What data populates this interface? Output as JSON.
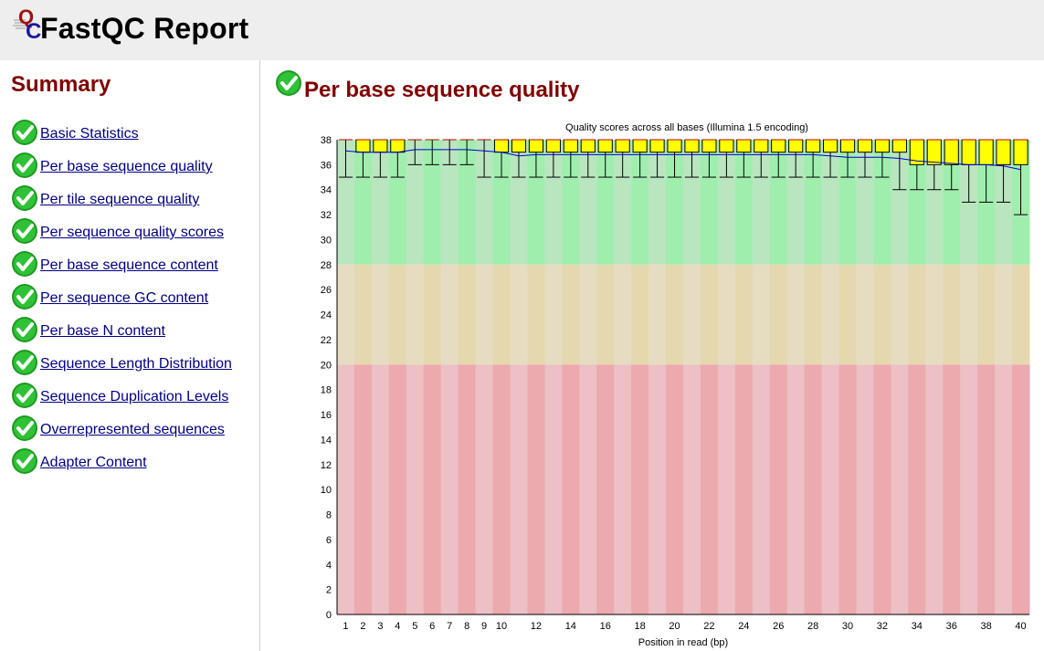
{
  "header": {
    "title": "FastQC Report",
    "logo_letters": "QC"
  },
  "sidebar": {
    "title": "Summary",
    "items": [
      {
        "label": "Basic Statistics",
        "status": "pass"
      },
      {
        "label": "Per base sequence quality",
        "status": "pass"
      },
      {
        "label": "Per tile sequence quality",
        "status": "pass"
      },
      {
        "label": "Per sequence quality scores",
        "status": "pass"
      },
      {
        "label": "Per base sequence content",
        "status": "pass"
      },
      {
        "label": "Per sequence GC content",
        "status": "pass"
      },
      {
        "label": "Per base N content",
        "status": "pass"
      },
      {
        "label": "Sequence Length Distribution",
        "status": "pass"
      },
      {
        "label": "Sequence Duplication Levels",
        "status": "pass"
      },
      {
        "label": "Overrepresented sequences",
        "status": "pass"
      },
      {
        "label": "Adapter Content",
        "status": "pass"
      }
    ]
  },
  "main": {
    "module_title": "Per base sequence quality",
    "module_status": "pass"
  },
  "colors": {
    "title": "#800000",
    "link": "#000080",
    "header_bg": "#eeeeee",
    "good_band": [
      "#b9e6bf",
      "#a0eeae"
    ],
    "warn_band": [
      "#e6dcc2",
      "#e6d8ae"
    ],
    "bad_band": [
      "#ecc0c4",
      "#eca9ae"
    ],
    "box": "#ffff00",
    "mean_line": "#0000c8",
    "pass_icon": "#22b22a"
  },
  "chart_data": {
    "type": "box",
    "title": "Quality scores across all bases (Illumina 1.5 encoding)",
    "xlabel": "Position in read (bp)",
    "ylabel": "",
    "ylim": [
      0,
      38
    ],
    "y_ticks": [
      0,
      2,
      4,
      6,
      8,
      10,
      12,
      14,
      16,
      18,
      20,
      22,
      24,
      26,
      28,
      30,
      32,
      34,
      36,
      38
    ],
    "x_tick_labels": [
      "1",
      "2",
      "3",
      "4",
      "5",
      "6",
      "7",
      "8",
      "9",
      "10",
      "",
      "12",
      "",
      "14",
      "",
      "16",
      "",
      "18",
      "",
      "20",
      "",
      "22",
      "",
      "24",
      "",
      "26",
      "",
      "28",
      "",
      "30",
      "",
      "32",
      "",
      "34",
      "",
      "36",
      "",
      "38",
      "",
      "40"
    ],
    "bands": [
      {
        "name": "good",
        "from": 28,
        "to": 38
      },
      {
        "name": "warning",
        "from": 20,
        "to": 28
      },
      {
        "name": "poor",
        "from": 0,
        "to": 20
      }
    ],
    "positions": [
      1,
      2,
      3,
      4,
      5,
      6,
      7,
      8,
      9,
      10,
      11,
      12,
      13,
      14,
      15,
      16,
      17,
      18,
      19,
      20,
      21,
      22,
      23,
      24,
      25,
      26,
      27,
      28,
      29,
      30,
      31,
      32,
      33,
      34,
      35,
      36,
      37,
      38,
      39,
      40
    ],
    "lower_quartile": [
      38,
      37,
      37,
      37,
      38,
      38,
      38,
      38,
      38,
      37,
      37,
      37,
      37,
      37,
      37,
      37,
      37,
      37,
      37,
      37,
      37,
      37,
      37,
      37,
      37,
      37,
      37,
      37,
      37,
      37,
      37,
      37,
      37,
      36,
      36,
      36,
      36,
      36,
      36,
      36
    ],
    "upper_quartile": [
      38,
      38,
      38,
      38,
      38,
      38,
      38,
      38,
      38,
      38,
      38,
      38,
      38,
      38,
      38,
      38,
      38,
      38,
      38,
      38,
      38,
      38,
      38,
      38,
      38,
      38,
      38,
      38,
      38,
      38,
      38,
      38,
      38,
      38,
      38,
      38,
      38,
      38,
      38,
      38
    ],
    "median": [
      38,
      38,
      38,
      38,
      38,
      38,
      38,
      38,
      38,
      38,
      38,
      38,
      38,
      38,
      38,
      38,
      38,
      38,
      38,
      38,
      38,
      38,
      38,
      38,
      38,
      38,
      38,
      38,
      38,
      38,
      38,
      38,
      38,
      38,
      38,
      38,
      38,
      38,
      38,
      38
    ],
    "lower_whisker": [
      35,
      35,
      35,
      35,
      36,
      36,
      36,
      36,
      35,
      35,
      35,
      35,
      35,
      35,
      35,
      35,
      35,
      35,
      35,
      35,
      35,
      35,
      35,
      35,
      35,
      35,
      35,
      35,
      35,
      35,
      35,
      35,
      34,
      34,
      34,
      34,
      33,
      33,
      33,
      32
    ],
    "upper_whisker": [
      38,
      38,
      38,
      38,
      38,
      38,
      38,
      38,
      38,
      38,
      38,
      38,
      38,
      38,
      38,
      38,
      38,
      38,
      38,
      38,
      38,
      38,
      38,
      38,
      38,
      38,
      38,
      38,
      38,
      38,
      38,
      38,
      38,
      38,
      38,
      38,
      38,
      38,
      38,
      38
    ],
    "mean": [
      37.1,
      37.0,
      37.0,
      37.0,
      37.2,
      37.2,
      37.2,
      37.2,
      37.1,
      37.0,
      36.7,
      36.8,
      36.8,
      36.8,
      36.8,
      36.8,
      36.8,
      36.8,
      36.8,
      36.8,
      36.8,
      36.8,
      36.8,
      36.8,
      36.8,
      36.8,
      36.8,
      36.8,
      36.7,
      36.6,
      36.6,
      36.6,
      36.5,
      36.3,
      36.2,
      36.1,
      36.0,
      36.0,
      35.9,
      35.6
    ]
  }
}
